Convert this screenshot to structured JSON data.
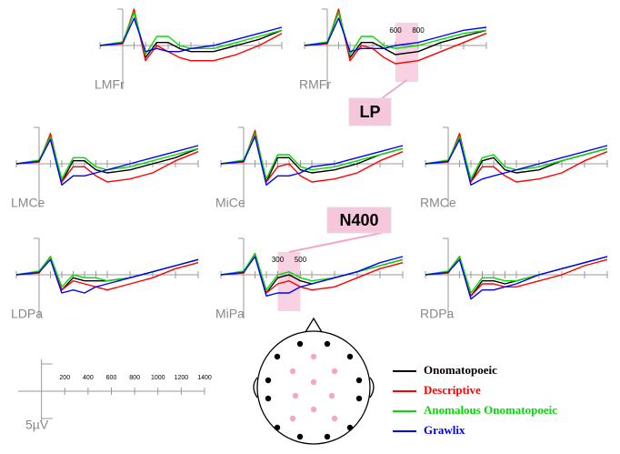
{
  "chart_data": [
    {
      "type": "line",
      "label": "LMFr",
      "x": [
        -200,
        0,
        100,
        200,
        300,
        400,
        500,
        600,
        800,
        1000,
        1200,
        1400
      ],
      "xlim": [
        -200,
        1400
      ],
      "ylim": [
        -6,
        6
      ],
      "series": [
        {
          "name": "Onomatopoeic",
          "color": "#000000",
          "values": [
            0,
            0.5,
            5.5,
            -2,
            0.5,
            0.5,
            -0.5,
            -1,
            -1,
            0,
            1,
            2.5
          ]
        },
        {
          "name": "Descriptive",
          "color": "#ff0000",
          "values": [
            0,
            0.3,
            6,
            -2.5,
            0,
            -1,
            -2,
            -2.5,
            -2.5,
            -1.5,
            0,
            2
          ]
        },
        {
          "name": "Anomalous Onomatopoeic",
          "color": "#00dd00",
          "values": [
            0,
            0.6,
            5.5,
            -1.5,
            1.5,
            1.5,
            0,
            -0.5,
            -0.5,
            0.5,
            1.5,
            2.5
          ]
        },
        {
          "name": "Grawlix",
          "color": "#0000ff",
          "values": [
            0,
            0.4,
            4.5,
            -1,
            -0.5,
            -1,
            -1,
            -0.5,
            0,
            1,
            2,
            3
          ]
        }
      ]
    },
    {
      "type": "line",
      "label": "RMFr",
      "x": [
        -200,
        0,
        100,
        200,
        300,
        400,
        500,
        600,
        800,
        1000,
        1200,
        1400
      ],
      "xlim": [
        -200,
        1400
      ],
      "ylim": [
        -6,
        6
      ],
      "window": {
        "label": "LP",
        "x": [
          600,
          800
        ]
      },
      "series": [
        {
          "name": "Onomatopoeic",
          "color": "#000000",
          "values": [
            0,
            0.5,
            5.5,
            -2,
            0.5,
            0.5,
            -0.5,
            -1.5,
            -1,
            0.5,
            1.5,
            2.5
          ]
        },
        {
          "name": "Descriptive",
          "color": "#ff0000",
          "values": [
            0,
            0.3,
            6,
            -2.5,
            0,
            -0.5,
            -2,
            -3,
            -2.5,
            -1,
            0.5,
            2
          ]
        },
        {
          "name": "Anomalous Onomatopoeic",
          "color": "#00dd00",
          "values": [
            0,
            0.6,
            5.5,
            -1.5,
            1.5,
            1.5,
            0,
            -0.5,
            0,
            1,
            2,
            2.5
          ]
        },
        {
          "name": "Grawlix",
          "color": "#0000ff",
          "values": [
            0,
            0.4,
            4.5,
            -1,
            -0.5,
            -0.5,
            -0.5,
            0,
            0.5,
            1.5,
            2.5,
            3
          ]
        }
      ]
    },
    {
      "type": "line",
      "label": "LMCe",
      "x": [
        -200,
        0,
        100,
        200,
        300,
        400,
        500,
        600,
        800,
        1000,
        1200,
        1400
      ],
      "xlim": [
        -200,
        1400
      ],
      "ylim": [
        -6,
        6
      ],
      "series": [
        {
          "name": "Onomatopoeic",
          "color": "#000000",
          "values": [
            0,
            0.5,
            4.5,
            -3,
            0.5,
            0.5,
            -1,
            -1.5,
            -1,
            0,
            1,
            2.5
          ]
        },
        {
          "name": "Descriptive",
          "color": "#ff0000",
          "values": [
            0,
            0.3,
            5,
            -3,
            -0.5,
            -0.5,
            -2,
            -3,
            -2.5,
            -1.5,
            0.5,
            2
          ]
        },
        {
          "name": "Anomalous Onomatopoeic",
          "color": "#00dd00",
          "values": [
            0,
            0.6,
            4.5,
            -2.5,
            1,
            1,
            -0.5,
            -1,
            -0.5,
            0.5,
            1.5,
            2.5
          ]
        },
        {
          "name": "Grawlix",
          "color": "#0000ff",
          "values": [
            0,
            0.4,
            4,
            -3.5,
            -2,
            -2,
            -1.5,
            -1,
            0,
            1,
            2,
            3
          ]
        }
      ]
    },
    {
      "type": "line",
      "label": "MiCe",
      "x": [
        -200,
        0,
        100,
        200,
        300,
        400,
        500,
        600,
        800,
        1000,
        1200,
        1400
      ],
      "xlim": [
        -200,
        1400
      ],
      "ylim": [
        -6,
        6
      ],
      "series": [
        {
          "name": "Onomatopoeic",
          "color": "#000000",
          "values": [
            0,
            0.5,
            5,
            -3,
            1,
            1,
            -1,
            -1.5,
            -1,
            0,
            1.5,
            2.5
          ]
        },
        {
          "name": "Descriptive",
          "color": "#ff0000",
          "values": [
            0,
            0.3,
            5.5,
            -3,
            -0.5,
            0,
            -2,
            -3,
            -2.5,
            -1.5,
            0.5,
            2
          ]
        },
        {
          "name": "Anomalous Onomatopoeic",
          "color": "#00dd00",
          "values": [
            0,
            0.6,
            5,
            -2.5,
            1.5,
            1.5,
            -0.5,
            -1,
            -0.5,
            0.5,
            1.5,
            2.5
          ]
        },
        {
          "name": "Grawlix",
          "color": "#0000ff",
          "values": [
            0,
            0.4,
            4.5,
            -3.5,
            -2,
            -2,
            -1.5,
            -0.5,
            0,
            1,
            2,
            3
          ]
        }
      ]
    },
    {
      "type": "line",
      "label": "RMCe",
      "x": [
        -200,
        0,
        100,
        200,
        300,
        400,
        500,
        600,
        800,
        1000,
        1200,
        1400
      ],
      "xlim": [
        -200,
        1400
      ],
      "ylim": [
        -6,
        6
      ],
      "series": [
        {
          "name": "Onomatopoeic",
          "color": "#000000",
          "values": [
            0,
            0.5,
            4.5,
            -3,
            0.5,
            1,
            -1,
            -1.5,
            -1,
            0.5,
            1.5,
            2.5
          ]
        },
        {
          "name": "Descriptive",
          "color": "#ff0000",
          "values": [
            0,
            0.3,
            5,
            -3,
            -0.5,
            -0.5,
            -2,
            -3,
            -2.5,
            -1.5,
            0.5,
            2
          ]
        },
        {
          "name": "Anomalous Onomatopoeic",
          "color": "#00dd00",
          "values": [
            0,
            0.6,
            4.5,
            -2.5,
            1,
            1.5,
            -0.5,
            -1,
            -0.5,
            0.5,
            1.5,
            2.5
          ]
        },
        {
          "name": "Grawlix",
          "color": "#0000ff",
          "values": [
            0,
            0.4,
            4,
            -3.5,
            -2.5,
            -2,
            -1.5,
            -1,
            0,
            1,
            2,
            3
          ]
        }
      ]
    },
    {
      "type": "line",
      "label": "LDPa",
      "x": [
        -200,
        0,
        100,
        200,
        300,
        400,
        500,
        600,
        800,
        1000,
        1200,
        1400
      ],
      "xlim": [
        -200,
        1400
      ],
      "ylim": [
        -6,
        6
      ],
      "series": [
        {
          "name": "Onomatopoeic",
          "color": "#000000",
          "values": [
            0,
            0.5,
            3,
            -2.5,
            -0.5,
            -1,
            -1,
            -1,
            -0.5,
            0.5,
            1.5,
            2.5
          ]
        },
        {
          "name": "Descriptive",
          "color": "#ff0000",
          "values": [
            0,
            0.3,
            3,
            -2.5,
            -1,
            -1.5,
            -2,
            -2.5,
            -1.5,
            -0.5,
            1,
            2
          ]
        },
        {
          "name": "Anomalous Onomatopoeic",
          "color": "#00dd00",
          "values": [
            0,
            0.6,
            3,
            -2,
            0,
            -0.5,
            -0.5,
            -1,
            -0.5,
            0.5,
            1.5,
            2.5
          ]
        },
        {
          "name": "Grawlix",
          "color": "#0000ff",
          "values": [
            0,
            0.4,
            2.5,
            -3,
            -2.5,
            -3,
            -2,
            -1.5,
            -0.5,
            0.5,
            1.5,
            2.5
          ]
        }
      ]
    },
    {
      "type": "line",
      "label": "MiPa",
      "x": [
        -200,
        0,
        100,
        200,
        300,
        400,
        500,
        600,
        800,
        1000,
        1200,
        1400
      ],
      "xlim": [
        -200,
        1400
      ],
      "ylim": [
        -6,
        6
      ],
      "window": {
        "label": "N400",
        "x": [
          300,
          500
        ]
      },
      "series": [
        {
          "name": "Onomatopoeic",
          "color": "#000000",
          "values": [
            0,
            0.5,
            3.5,
            -3,
            -0.5,
            0,
            -1,
            -1.5,
            -0.5,
            0.5,
            1.5,
            2.5
          ]
        },
        {
          "name": "Descriptive",
          "color": "#ff0000",
          "values": [
            0,
            0.3,
            3.5,
            -3,
            -1.5,
            -1,
            -2,
            -2.5,
            -2,
            -0.5,
            1,
            2
          ]
        },
        {
          "name": "Anomalous Onomatopoeic",
          "color": "#00dd00",
          "values": [
            0,
            0.6,
            3.5,
            -2.5,
            0,
            0.5,
            -0.5,
            -1,
            -0.5,
            0.5,
            1.5,
            2.5
          ]
        },
        {
          "name": "Grawlix",
          "color": "#0000ff",
          "values": [
            0,
            0.4,
            3,
            -3.5,
            -3,
            -3,
            -2,
            -1.5,
            -0.5,
            0.5,
            2,
            3
          ]
        }
      ]
    },
    {
      "type": "line",
      "label": "RDPa",
      "x": [
        -200,
        0,
        100,
        200,
        300,
        400,
        500,
        600,
        800,
        1000,
        1200,
        1400
      ],
      "xlim": [
        -200,
        1400
      ],
      "ylim": [
        -6,
        6
      ],
      "series": [
        {
          "name": "Onomatopoeic",
          "color": "#000000",
          "values": [
            0,
            0.5,
            3,
            -3.5,
            -1,
            -1,
            -1.5,
            -1,
            0,
            1,
            2,
            3
          ]
        },
        {
          "name": "Descriptive",
          "color": "#ff0000",
          "values": [
            0,
            0.3,
            3,
            -3.5,
            -1.5,
            -1.5,
            -2,
            -2,
            -1,
            0,
            1.5,
            2.5
          ]
        },
        {
          "name": "Anomalous Onomatopoeic",
          "color": "#00dd00",
          "values": [
            0,
            0.6,
            3,
            -3,
            -0.5,
            -0.5,
            -1,
            -1,
            0,
            1,
            2,
            3
          ]
        },
        {
          "name": "Grawlix",
          "color": "#0000ff",
          "values": [
            0,
            0.4,
            2.5,
            -4,
            -2.5,
            -2.5,
            -2,
            -1.5,
            0,
            1,
            2,
            3
          ]
        }
      ]
    }
  ],
  "scale_bar": {
    "xticks": [
      200,
      400,
      600,
      800,
      1000,
      1200,
      1400
    ],
    "ylabel": "5µV"
  }
}
